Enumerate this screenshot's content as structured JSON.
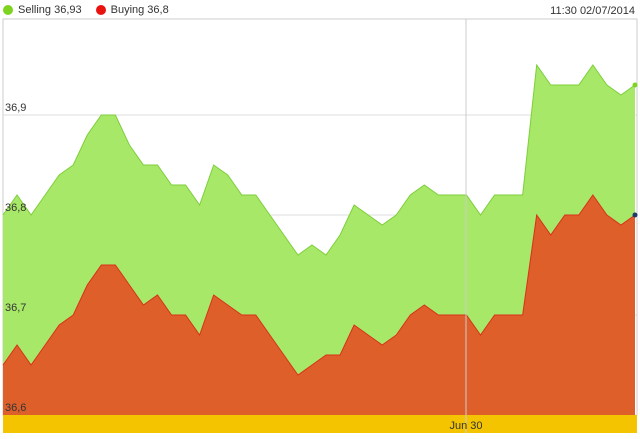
{
  "legend": {
    "selling_label": "Selling 36,93",
    "buying_label": "Buying 36,8"
  },
  "timestamp": "11:30 02/07/2014",
  "chart_data": {
    "type": "area",
    "ylim": [
      36.6,
      37.0
    ],
    "y_ticks": [
      36.6,
      36.7,
      36.8,
      36.9
    ],
    "y_tick_labels": [
      "36,6",
      "36,7",
      "36,8",
      "36,9"
    ],
    "x_tick_labels": [
      "Jun 30"
    ],
    "grid": true,
    "legend_position": "top-left",
    "series": [
      {
        "name": "Selling",
        "color": "#a8e868",
        "line_color": "#7ccf3a",
        "values": [
          36.8,
          36.82,
          36.8,
          36.82,
          36.84,
          36.85,
          36.88,
          36.9,
          36.9,
          36.87,
          36.85,
          36.85,
          36.83,
          36.83,
          36.81,
          36.85,
          36.84,
          36.82,
          36.82,
          36.8,
          36.78,
          36.76,
          36.77,
          36.76,
          36.78,
          36.81,
          36.8,
          36.79,
          36.8,
          36.82,
          36.83,
          36.82,
          36.82,
          36.82,
          36.8,
          36.82,
          36.82,
          36.82,
          36.95,
          36.93,
          36.93,
          36.93,
          36.95,
          36.93,
          36.92,
          36.93
        ]
      },
      {
        "name": "Buying",
        "color": "#de5f2a",
        "line_color": "#d8321a",
        "values": [
          36.65,
          36.67,
          36.65,
          36.67,
          36.69,
          36.7,
          36.73,
          36.75,
          36.75,
          36.73,
          36.71,
          36.72,
          36.7,
          36.7,
          36.68,
          36.72,
          36.71,
          36.7,
          36.7,
          36.68,
          36.66,
          36.64,
          36.65,
          36.66,
          36.66,
          36.69,
          36.68,
          36.67,
          36.68,
          36.7,
          36.71,
          36.7,
          36.7,
          36.7,
          36.68,
          36.7,
          36.7,
          36.7,
          36.8,
          36.78,
          36.8,
          36.8,
          36.82,
          36.8,
          36.79,
          36.8
        ]
      }
    ],
    "navigator_color": "#f5c400"
  }
}
